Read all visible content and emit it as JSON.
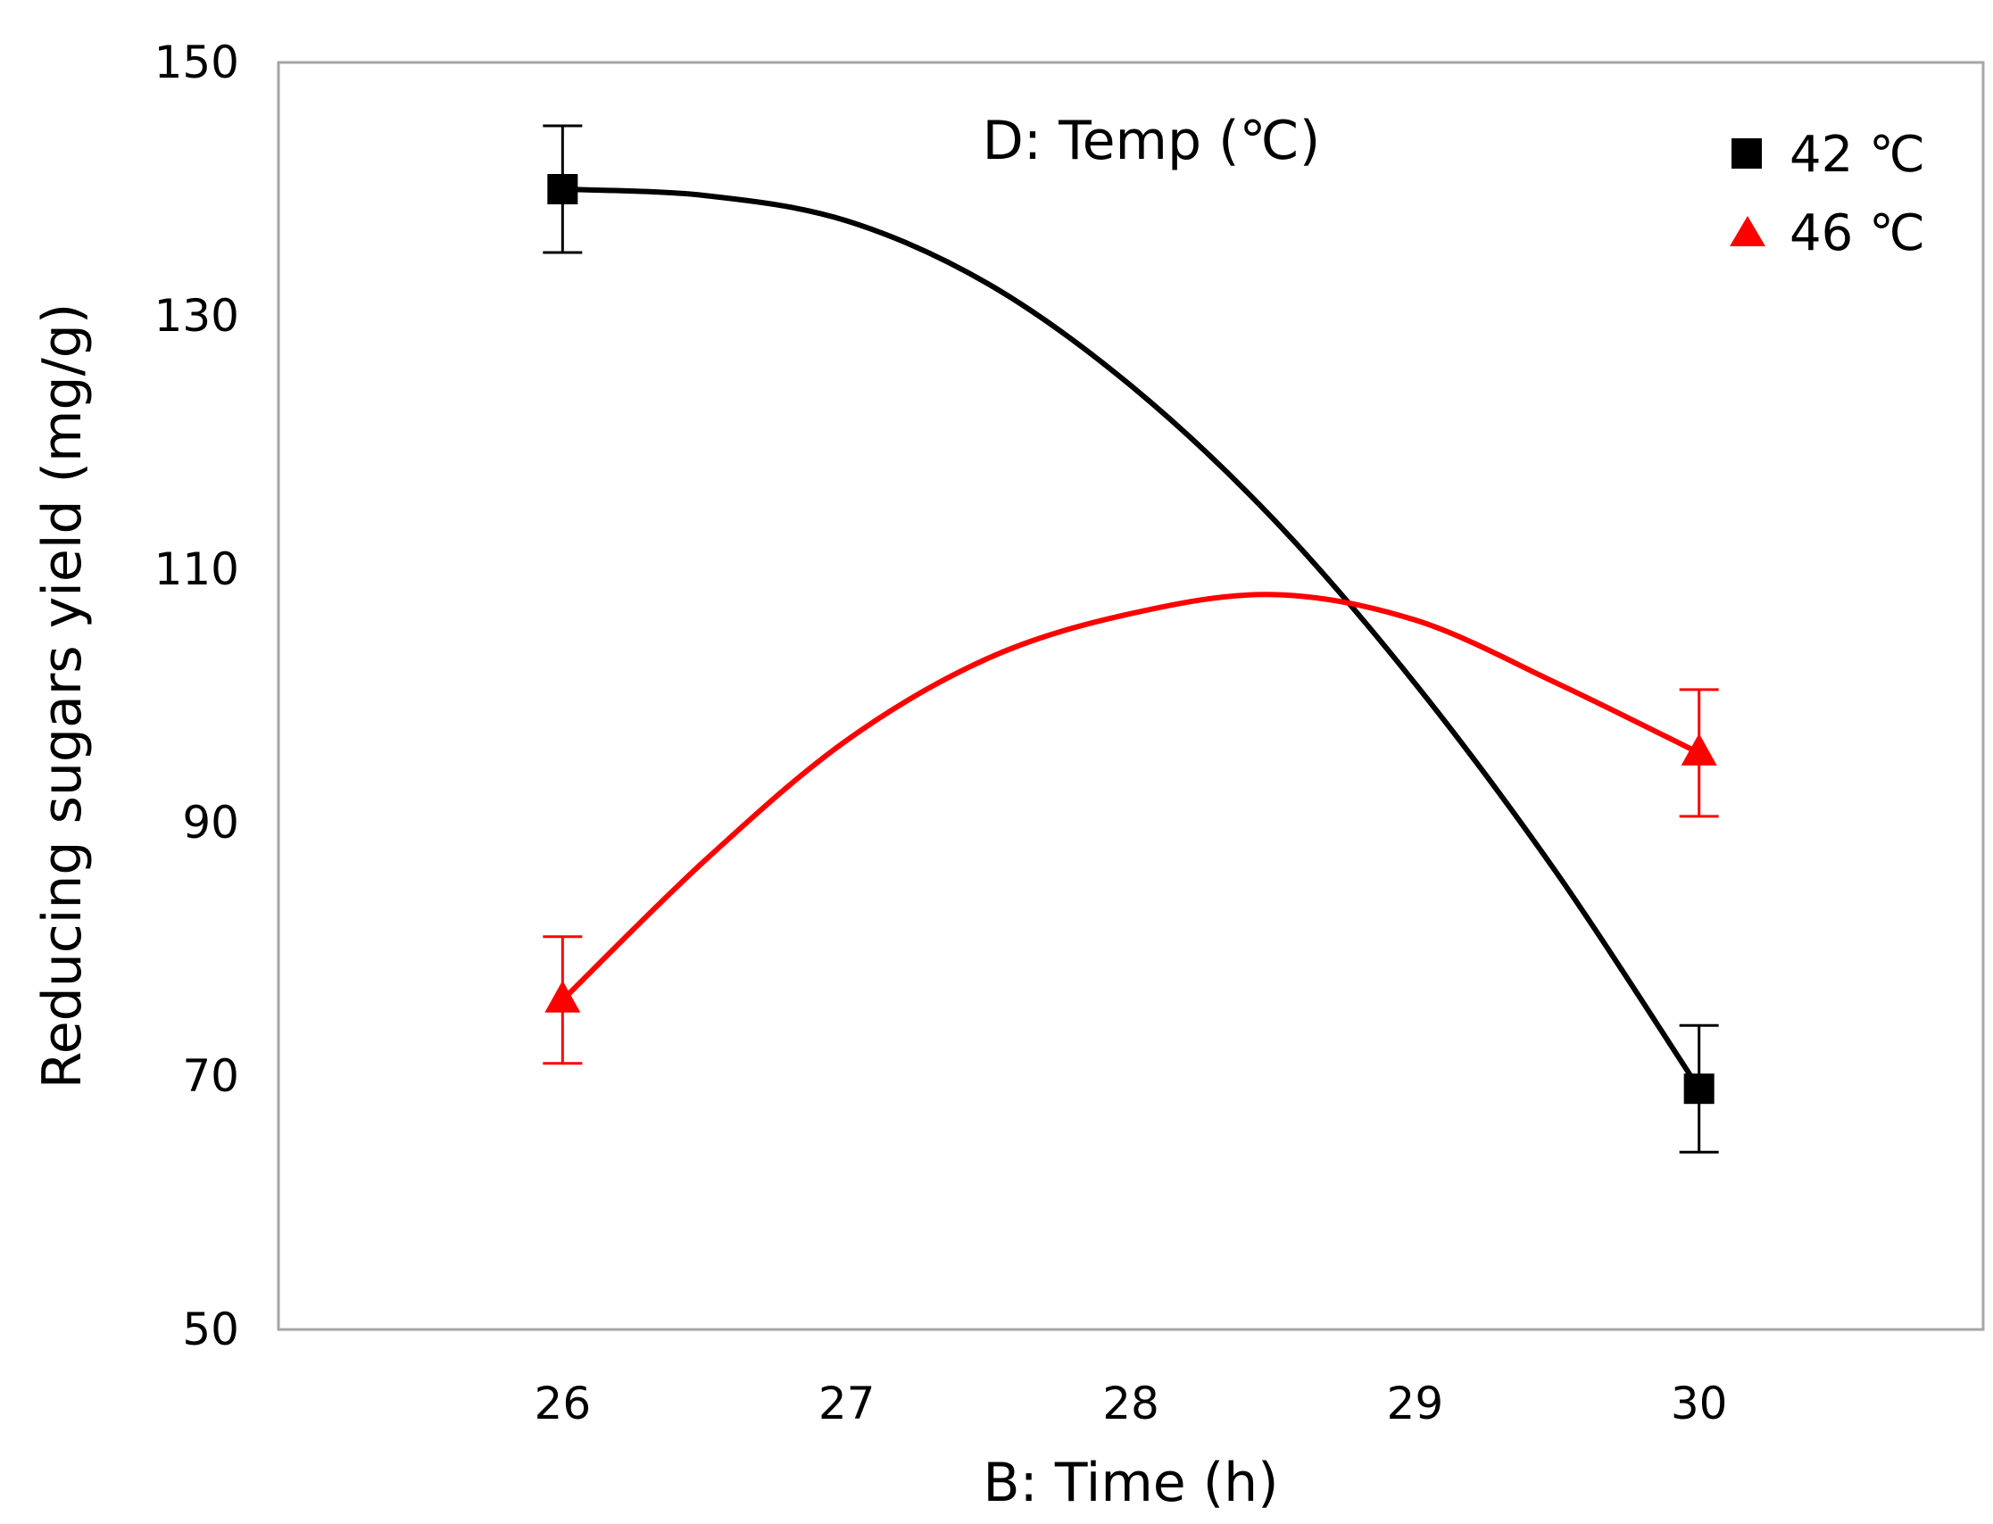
{
  "chart_data": {
    "type": "line",
    "title": "",
    "annotation": "D: Temp (℃)",
    "xlabel": "B: Time (h)",
    "ylabel": "Reducing sugars yield (mg/g)",
    "xlim": [
      25,
      31
    ],
    "ylim": [
      50,
      150
    ],
    "xticks": [
      "26",
      "27",
      "28",
      "29",
      "30"
    ],
    "yticks": [
      "50",
      "70",
      "90",
      "110",
      "130",
      "150"
    ],
    "legend_position": "top-right",
    "series": [
      {
        "name": "42 ℃",
        "color": "#000000",
        "marker": "square",
        "x": [
          26,
          30
        ],
        "y": [
          140,
          69
        ],
        "error": [
          5,
          5
        ],
        "curve_x": [
          26,
          26.5,
          27,
          27.5,
          28,
          28.5,
          29,
          29.5,
          30
        ],
        "curve_y": [
          140,
          139.5,
          137.5,
          132.5,
          124.5,
          114,
          101,
          86,
          69
        ]
      },
      {
        "name": "46 ℃",
        "color": "#ff0000",
        "marker": "triangle",
        "x": [
          26,
          30
        ],
        "y": [
          76,
          95.5
        ],
        "error": [
          5,
          5
        ],
        "curve_x": [
          26,
          26.5,
          27,
          27.5,
          28,
          28.5,
          29,
          29.5,
          30
        ],
        "curve_y": [
          76,
          87,
          96.5,
          103,
          106.5,
          108,
          106,
          101,
          95.5
        ]
      }
    ]
  }
}
